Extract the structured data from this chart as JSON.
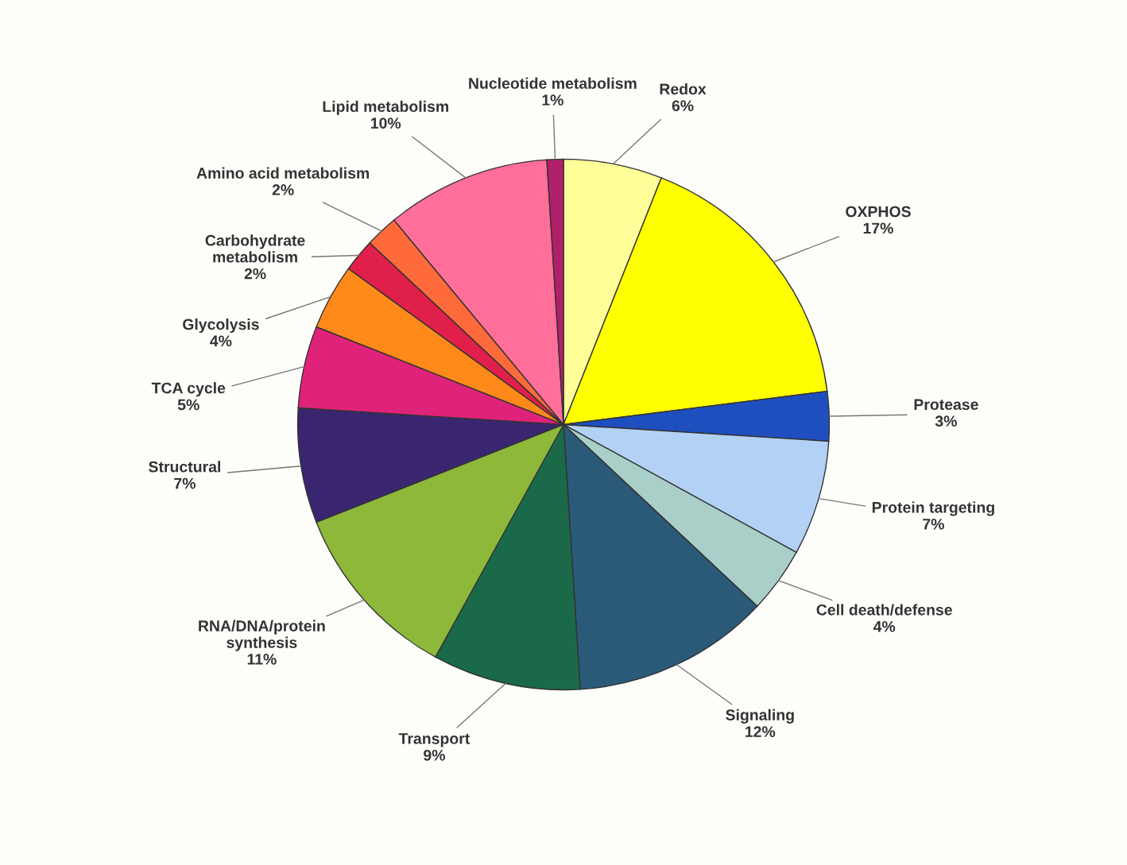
{
  "chart_data": {
    "type": "pie",
    "categories": [
      "Redox",
      "OXPHOS",
      "Protease",
      "Protein targeting",
      "Cell death/defense",
      "Signaling",
      "Transport",
      "RNA/DNA/protein\nsynthesis",
      "Structural",
      "TCA cycle",
      "Glycolysis",
      "Carbohydrate\nmetabolism",
      "Amino acid metabolism",
      "Lipid metabolism",
      "Nucleotide metabolism"
    ],
    "values": [
      6,
      17,
      3,
      7,
      4,
      12,
      9,
      11,
      7,
      5,
      4,
      2,
      2,
      10,
      1
    ],
    "value_labels": [
      "6%",
      "17%",
      "3%",
      "7%",
      "4%",
      "12%",
      "9%",
      "11%",
      "7%",
      "5%",
      "4%",
      "2%",
      "2%",
      "10%",
      "1%"
    ],
    "colors": [
      "#ffff99",
      "#ffff00",
      "#1f4fbf",
      "#b3d1f5",
      "#a9cfc8",
      "#2a5a78",
      "#1a6a4a",
      "#8db83a",
      "#3a2670",
      "#e0237a",
      "#ff8a1a",
      "#e0204a",
      "#ff6a3a",
      "#ff6f9a",
      "#b0206a"
    ]
  }
}
